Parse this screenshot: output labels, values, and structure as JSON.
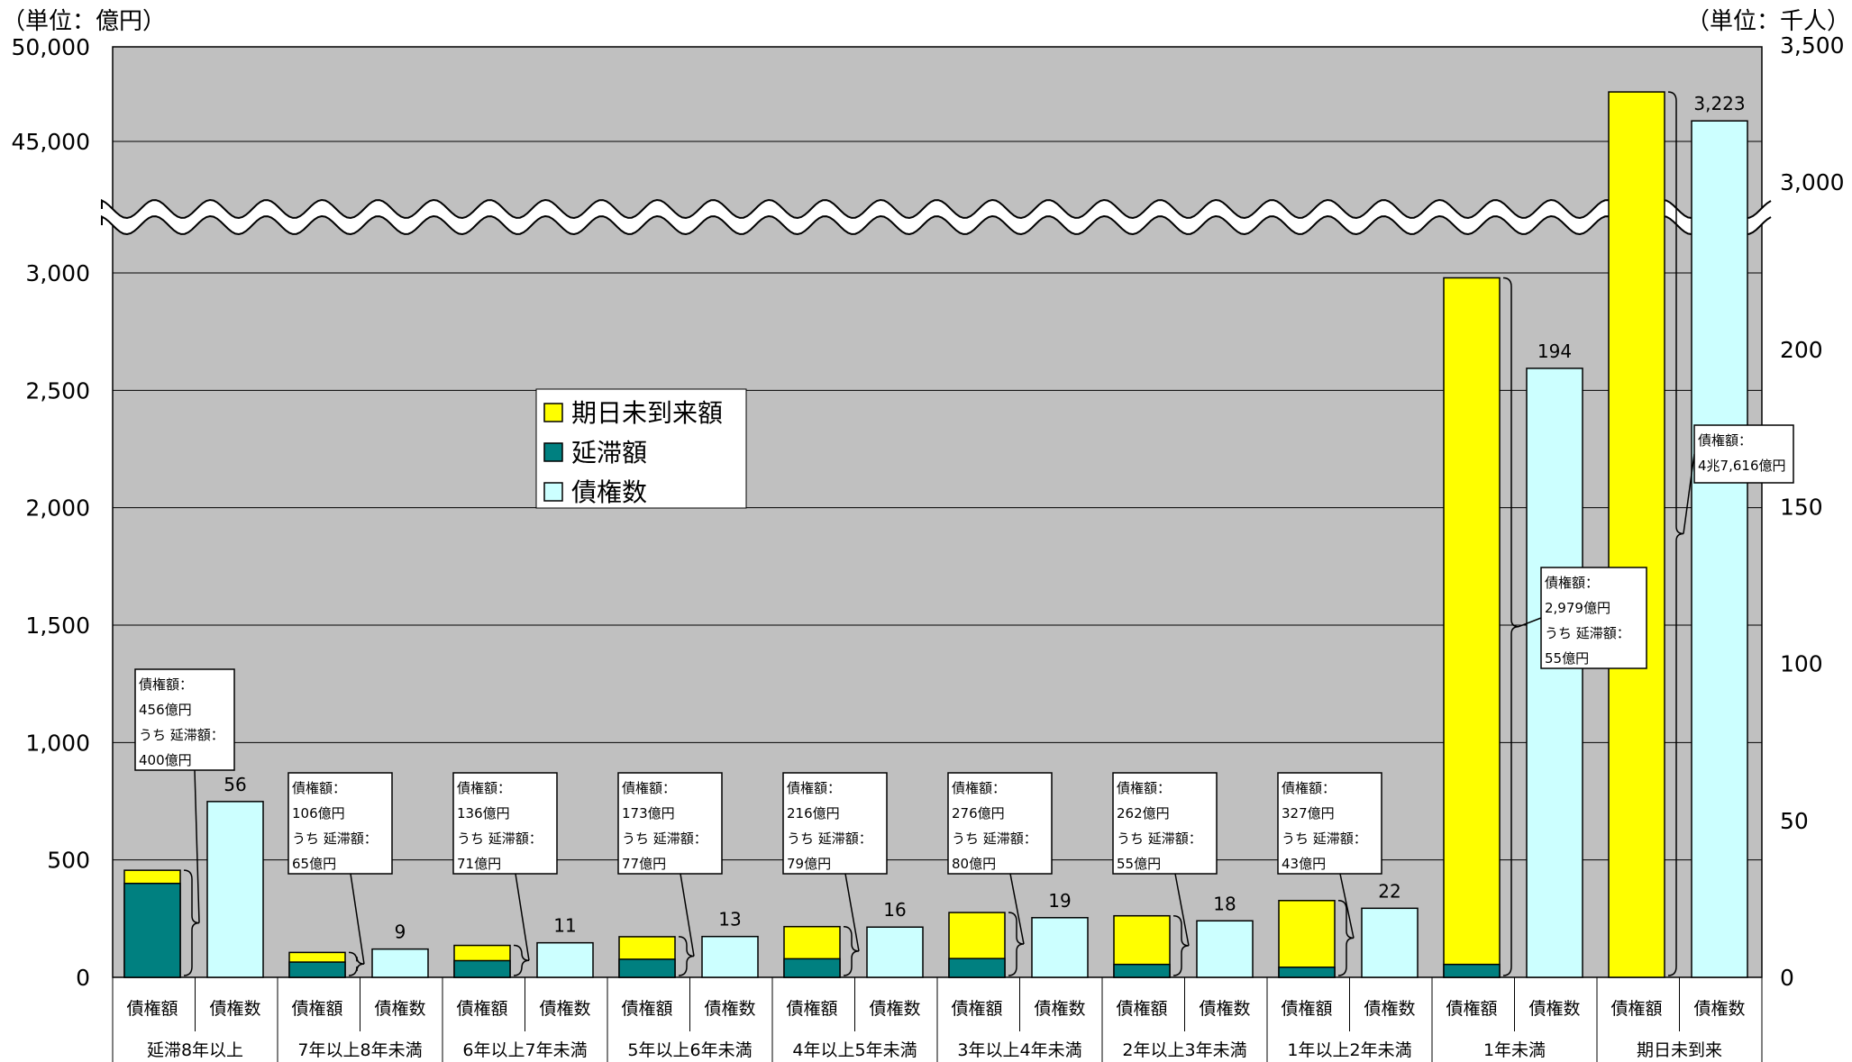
{
  "chart_data": {
    "type": "bar",
    "units": {
      "left": "（単位：億円）",
      "right": "（単位：千人）"
    },
    "left_axis": {
      "upper_ticks": [
        "45,000",
        "50,000"
      ],
      "lower_ticks": [
        "0",
        "500",
        "1,000",
        "1,500",
        "2,000",
        "2,500",
        "3,000"
      ],
      "lower_range": [
        0,
        3000
      ],
      "upper_range": [
        45000,
        50000
      ]
    },
    "right_axis": {
      "ticks": [
        "0",
        "50",
        "100",
        "150",
        "200",
        "3,000",
        "3,500"
      ],
      "lower_range": [
        0,
        200
      ],
      "upper_range": [
        3000,
        3500
      ]
    },
    "bar_labels": {
      "amount": "債権額",
      "count": "債権数"
    },
    "legend": [
      {
        "key": "unexpired",
        "label": "期日未到来額",
        "color": "#FFFF00"
      },
      {
        "key": "overdue",
        "label": "延滞額",
        "color": "#008080"
      },
      {
        "key": "count",
        "label": "債権数",
        "color": "#CCFFFF"
      }
    ],
    "groups": [
      {
        "label": "延滞8年以上",
        "amount": 456,
        "overdue": 400,
        "count": 56,
        "count_label": "56",
        "note": [
          "債権額：",
          "456億円",
          "うち 延滞額：",
          "400億円"
        ]
      },
      {
        "label": "7年以上8年未満",
        "amount": 106,
        "overdue": 65,
        "count": 9,
        "count_label": "9",
        "note": [
          "債権額：",
          "106億円",
          "うち 延滞額：",
          "65億円"
        ]
      },
      {
        "label": "6年以上7年未満",
        "amount": 136,
        "overdue": 71,
        "count": 11,
        "count_label": "11",
        "note": [
          "債権額：",
          "136億円",
          "うち 延滞額：",
          "71億円"
        ]
      },
      {
        "label": "5年以上6年未満",
        "amount": 173,
        "overdue": 77,
        "count": 13,
        "count_label": "13",
        "note": [
          "債権額：",
          "173億円",
          "うち 延滞額：",
          "77億円"
        ]
      },
      {
        "label": "4年以上5年未満",
        "amount": 216,
        "overdue": 79,
        "count": 16,
        "count_label": "16",
        "note": [
          "債権額：",
          "216億円",
          "うち 延滞額：",
          "79億円"
        ]
      },
      {
        "label": "3年以上4年未満",
        "amount": 276,
        "overdue": 80,
        "count": 19,
        "count_label": "19",
        "note": [
          "債権額：",
          "276億円",
          "うち 延滞額：",
          "80億円"
        ]
      },
      {
        "label": "2年以上3年未満",
        "amount": 262,
        "overdue": 55,
        "count": 18,
        "count_label": "18",
        "note": [
          "債権額：",
          "262億円",
          "うち 延滞額：",
          "55億円"
        ]
      },
      {
        "label": "1年以上2年未満",
        "amount": 327,
        "overdue": 43,
        "count": 22,
        "count_label": "22",
        "note": [
          "債権額：",
          "327億円",
          "うち 延滞額：",
          "43億円"
        ]
      },
      {
        "label": "1年未満",
        "amount": 2979,
        "overdue": 55,
        "count": 194,
        "count_label": "194",
        "note": [
          "債権額：",
          "2,979億円",
          "うち 延滞額：",
          "55億円"
        ]
      },
      {
        "label": "期日未到来",
        "amount": 47616,
        "overdue": 0,
        "count": 3223,
        "count_label": "3,223",
        "note": [
          "債権額：",
          "4兆7,616億円"
        ]
      }
    ]
  }
}
